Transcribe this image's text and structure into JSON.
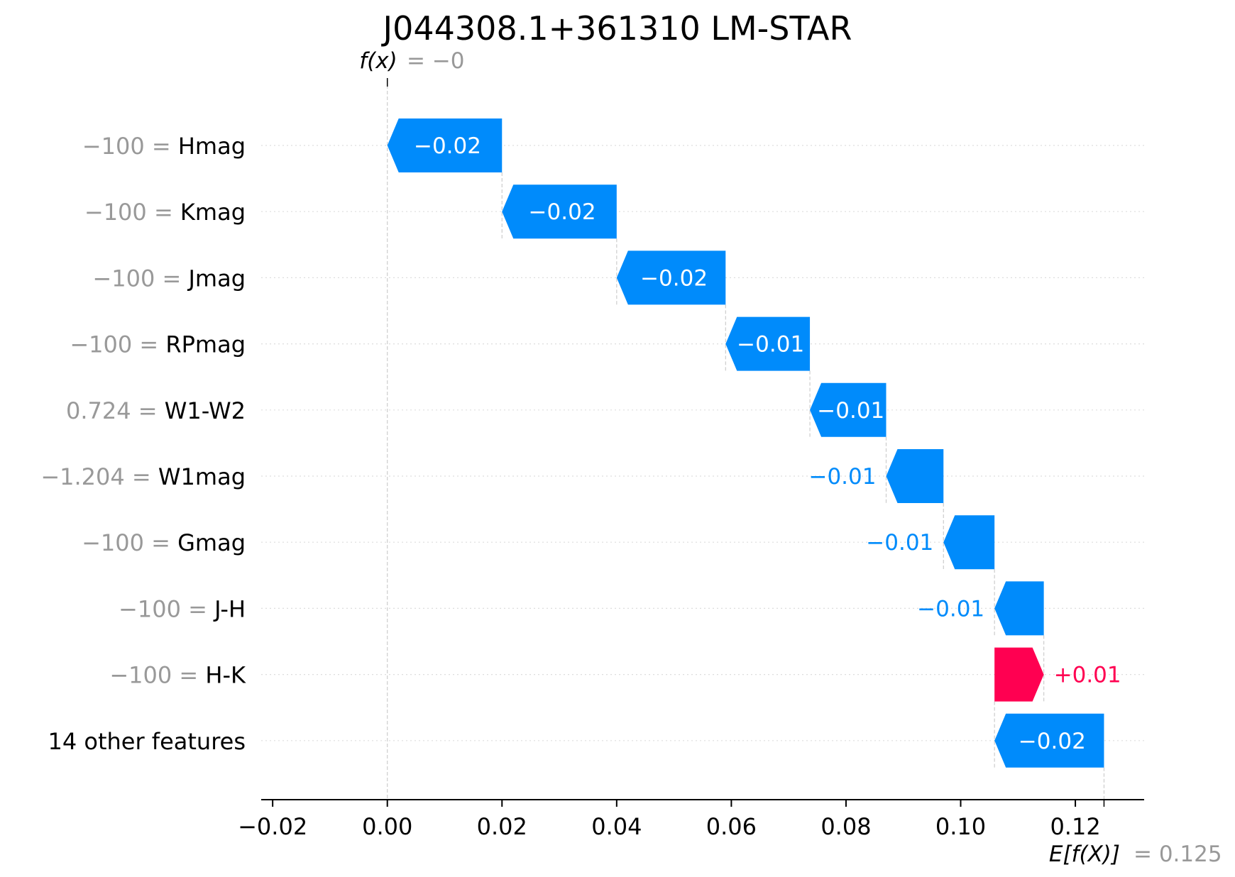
{
  "chart_data": {
    "type": "waterfall",
    "title": "J044308.1+361310 LM-STAR",
    "fx_label": "f(x)",
    "fx_value": "= −0",
    "efx_label": "E[f(X)]",
    "efx_value": "= 0.125",
    "base_value": 0.125,
    "final_value": 0.0,
    "xlim": [
      -0.022,
      0.132
    ],
    "x_ticks": [
      -0.02,
      0.0,
      0.02,
      0.04,
      0.06,
      0.08,
      0.1,
      0.12
    ],
    "x_tick_labels": [
      "−0.02",
      "0.00",
      "0.02",
      "0.04",
      "0.06",
      "0.08",
      "0.10",
      "0.12"
    ],
    "features": [
      {
        "value_text": "−100 =",
        "name": "Hmag",
        "start": 0.02,
        "end": 0.0,
        "label": "−0.02"
      },
      {
        "value_text": "−100 =",
        "name": "Kmag",
        "start": 0.04,
        "end": 0.02,
        "label": "−0.02"
      },
      {
        "value_text": "−100 =",
        "name": "Jmag",
        "start": 0.059,
        "end": 0.04,
        "label": "−0.02"
      },
      {
        "value_text": "−100 =",
        "name": "RPmag",
        "start": 0.0737,
        "end": 0.059,
        "label": "−0.01"
      },
      {
        "value_text": "0.724 =",
        "name": "W1-W2",
        "start": 0.087,
        "end": 0.0737,
        "label": "−0.01"
      },
      {
        "value_text": "−1.204 =",
        "name": "W1mag",
        "start": 0.097,
        "end": 0.087,
        "label": "−0.01"
      },
      {
        "value_text": "−100 =",
        "name": "Gmag",
        "start": 0.1059,
        "end": 0.097,
        "label": "−0.01"
      },
      {
        "value_text": "−100 =",
        "name": "J-H",
        "start": 0.1145,
        "end": 0.1059,
        "label": "−0.01"
      },
      {
        "value_text": "−100 =",
        "name": "H-K",
        "start": 0.1059,
        "end": 0.1145,
        "label": "+0.01"
      },
      {
        "value_text": "",
        "name": "14 other features",
        "start": 0.125,
        "end": 0.1059,
        "label": "−0.02"
      }
    ],
    "colors": {
      "negative": "#008bfb",
      "positive": "#ff0051",
      "muted_text": "#999999",
      "text": "#000000",
      "gridline": "#cccccc"
    }
  }
}
